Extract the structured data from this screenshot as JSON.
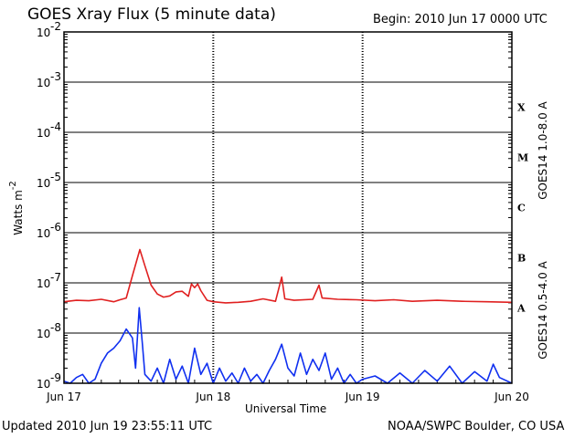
{
  "header": {
    "title": "GOES Xray Flux (5 minute data)",
    "begin": "Begin:  2010 Jun 17 0000 UTC"
  },
  "footer": {
    "updated": "Updated 2010 Jun 19 23:55:11 UTC",
    "credit": "NOAA/SWPC Boulder, CO USA"
  },
  "colors": {
    "long_channel": "#e02020",
    "short_channel": "#1030f0",
    "background": "#ffffff",
    "frame": "#000000"
  },
  "chart_data": {
    "type": "line",
    "title": "GOES Xray Flux (5 minute data)",
    "xlabel": "Universal Time",
    "ylabel": "Watts m",
    "ylabel_superscript": "-2",
    "yscale": "log",
    "ylim": [
      1e-09,
      0.01
    ],
    "xlim": [
      0,
      72
    ],
    "x_unit": "hours since 2010 Jun 17 0000 UTC",
    "x_ticks": [
      {
        "x": 0,
        "label": "Jun 17"
      },
      {
        "x": 24,
        "label": "Jun 18"
      },
      {
        "x": 48,
        "label": "Jun 19"
      },
      {
        "x": 72,
        "label": "Jun 20"
      }
    ],
    "y_ticks": [
      {
        "exp": -2,
        "base": "10",
        "sup": "-2"
      },
      {
        "exp": -3,
        "base": "10",
        "sup": "-3"
      },
      {
        "exp": -4,
        "base": "10",
        "sup": "-4"
      },
      {
        "exp": -5,
        "base": "10",
        "sup": "-5"
      },
      {
        "exp": -6,
        "base": "10",
        "sup": "-6"
      },
      {
        "exp": -7,
        "base": "10",
        "sup": "-7"
      },
      {
        "exp": -8,
        "base": "10",
        "sup": "-8"
      },
      {
        "exp": -9,
        "base": "10",
        "sup": "-9"
      }
    ],
    "flare_classes": [
      {
        "label": "X",
        "exp": -3.5
      },
      {
        "label": "M",
        "exp": -4.5
      },
      {
        "label": "C",
        "exp": -5.5
      },
      {
        "label": "B",
        "exp": -6.5
      },
      {
        "label": "A",
        "exp": -7.5
      }
    ],
    "grid": "horizontal lines at each decade",
    "legend_placement": "right side, vertical text",
    "series": [
      {
        "name": "GOES14 1.0-8.0 A",
        "color": "#e02020",
        "points": [
          [
            0,
            4.2e-08
          ],
          [
            2,
            4.5e-08
          ],
          [
            4,
            4.4e-08
          ],
          [
            6,
            4.7e-08
          ],
          [
            8,
            4.2e-08
          ],
          [
            9,
            4.6e-08
          ],
          [
            10,
            5e-08
          ],
          [
            11,
            1.4e-07
          ],
          [
            12.2,
            4.6e-07
          ],
          [
            13,
            2.2e-07
          ],
          [
            14,
            9e-08
          ],
          [
            15,
            6e-08
          ],
          [
            16,
            5.2e-08
          ],
          [
            17,
            5.5e-08
          ],
          [
            18,
            6.6e-08
          ],
          [
            19,
            6.8e-08
          ],
          [
            20,
            5.4e-08
          ],
          [
            20.5,
            9.5e-08
          ],
          [
            21,
            8e-08
          ],
          [
            21.5,
            9.5e-08
          ],
          [
            22,
            7e-08
          ],
          [
            23,
            4.5e-08
          ],
          [
            24,
            4.2e-08
          ],
          [
            26,
            4e-08
          ],
          [
            28,
            4.1e-08
          ],
          [
            30,
            4.3e-08
          ],
          [
            32,
            4.8e-08
          ],
          [
            34,
            4.3e-08
          ],
          [
            35,
            1.3e-07
          ],
          [
            35.5,
            4.8e-08
          ],
          [
            37,
            4.5e-08
          ],
          [
            40,
            4.7e-08
          ],
          [
            41,
            9e-08
          ],
          [
            41.5,
            5e-08
          ],
          [
            44,
            4.7e-08
          ],
          [
            47,
            4.6e-08
          ],
          [
            50,
            4.4e-08
          ],
          [
            53,
            4.6e-08
          ],
          [
            56,
            4.3e-08
          ],
          [
            60,
            4.5e-08
          ],
          [
            64,
            4.3e-08
          ],
          [
            68,
            4.2e-08
          ],
          [
            72,
            4.1e-08
          ]
        ]
      },
      {
        "name": "GOES14 0.5-4.0 A",
        "color": "#1030f0",
        "points": [
          [
            0,
            1.1e-09
          ],
          [
            1,
            1e-09
          ],
          [
            2,
            1.3e-09
          ],
          [
            3,
            1.5e-09
          ],
          [
            4,
            1e-09
          ],
          [
            5,
            1.2e-09
          ],
          [
            6,
            2.5e-09
          ],
          [
            7,
            4e-09
          ],
          [
            8,
            5e-09
          ],
          [
            9,
            7e-09
          ],
          [
            10,
            1.2e-08
          ],
          [
            11,
            8e-09
          ],
          [
            11.5,
            2e-09
          ],
          [
            12.1,
            3.2e-08
          ],
          [
            12.6,
            6e-09
          ],
          [
            13,
            1.5e-09
          ],
          [
            14,
            1.1e-09
          ],
          [
            15,
            2e-09
          ],
          [
            16,
            1e-09
          ],
          [
            17,
            3e-09
          ],
          [
            18,
            1.2e-09
          ],
          [
            19,
            2.2e-09
          ],
          [
            20,
            1e-09
          ],
          [
            21,
            5e-09
          ],
          [
            22,
            1.5e-09
          ],
          [
            23,
            2.5e-09
          ],
          [
            24,
            1e-09
          ],
          [
            25,
            2e-09
          ],
          [
            26,
            1.1e-09
          ],
          [
            27,
            1.6e-09
          ],
          [
            28,
            1e-09
          ],
          [
            29,
            2e-09
          ],
          [
            30,
            1.1e-09
          ],
          [
            31,
            1.5e-09
          ],
          [
            32,
            1e-09
          ],
          [
            33,
            1.8e-09
          ],
          [
            34,
            3e-09
          ],
          [
            35,
            6e-09
          ],
          [
            36,
            2e-09
          ],
          [
            37,
            1.4e-09
          ],
          [
            38,
            4e-09
          ],
          [
            39,
            1.5e-09
          ],
          [
            40,
            3e-09
          ],
          [
            41,
            1.8e-09
          ],
          [
            42,
            4e-09
          ],
          [
            43,
            1.2e-09
          ],
          [
            44,
            2e-09
          ],
          [
            45,
            1e-09
          ],
          [
            46,
            1.5e-09
          ],
          [
            47,
            1e-09
          ],
          [
            48,
            1.2e-09
          ],
          [
            50,
            1.4e-09
          ],
          [
            52,
            1e-09
          ],
          [
            54,
            1.6e-09
          ],
          [
            56,
            1e-09
          ],
          [
            58,
            1.8e-09
          ],
          [
            60,
            1.1e-09
          ],
          [
            62,
            2.2e-09
          ],
          [
            64,
            1e-09
          ],
          [
            66,
            1.7e-09
          ],
          [
            68,
            1.1e-09
          ],
          [
            69,
            2.4e-09
          ],
          [
            70,
            1.3e-09
          ],
          [
            72,
            1e-09
          ]
        ]
      }
    ]
  }
}
